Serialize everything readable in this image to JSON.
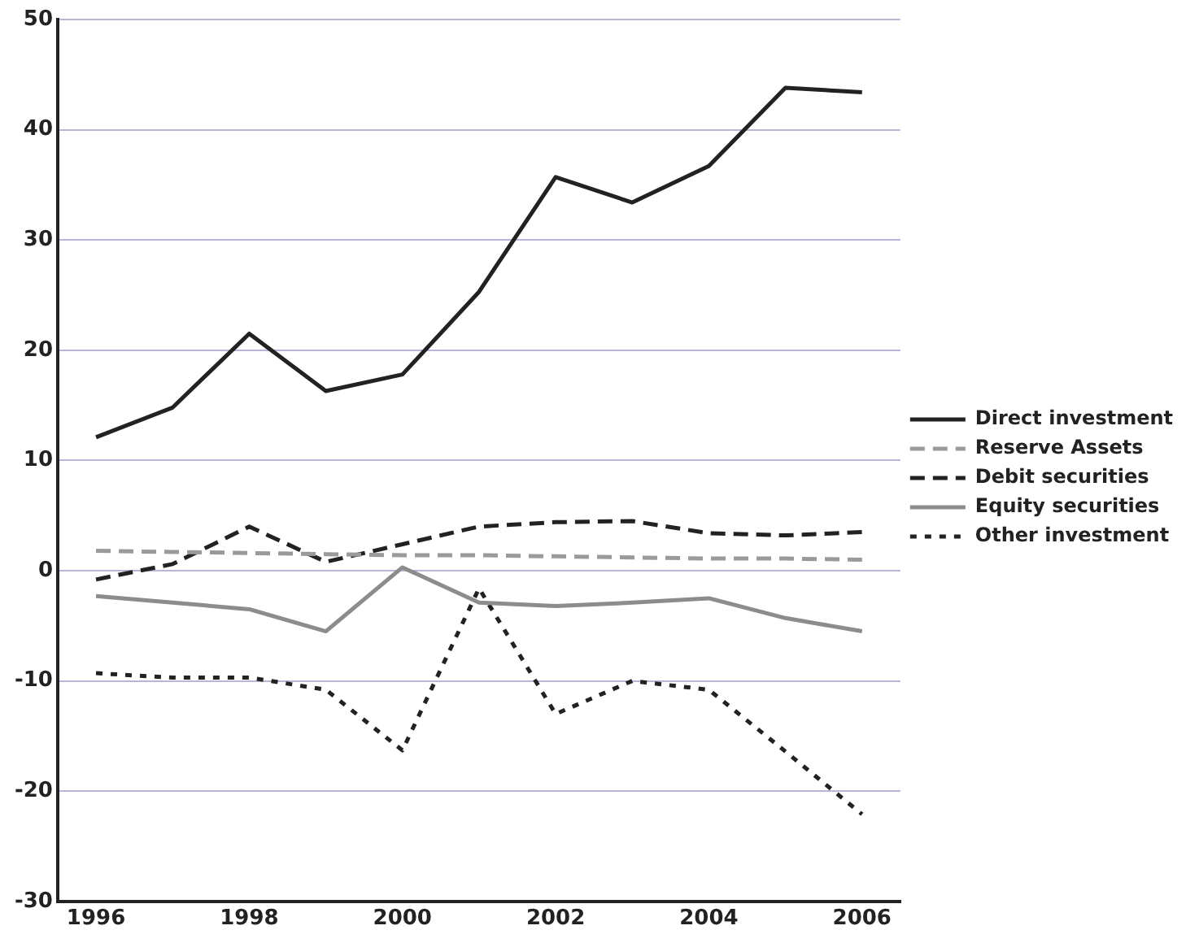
{
  "chart_data": {
    "type": "line",
    "x": [
      1996,
      1997,
      1998,
      1999,
      2000,
      2001,
      2002,
      2003,
      2004,
      2005,
      2006
    ],
    "series": [
      {
        "name": "Direct investment",
        "color": "#222222",
        "line_style": "solid",
        "values": [
          12.1,
          14.8,
          21.5,
          16.3,
          17.8,
          25.3,
          35.7,
          33.4,
          36.7,
          43.8,
          43.4
        ]
      },
      {
        "name": "Reserve Assets",
        "color": "#9a9a9a",
        "line_style": "dashed",
        "values": [
          1.8,
          1.7,
          1.6,
          1.5,
          1.4,
          1.4,
          1.3,
          1.2,
          1.1,
          1.1,
          1.0
        ]
      },
      {
        "name": "Debit securities",
        "color": "#222222",
        "line_style": "dashed",
        "values": [
          -0.8,
          0.6,
          4.0,
          0.8,
          2.4,
          4.0,
          4.4,
          4.5,
          3.4,
          3.2,
          3.5
        ]
      },
      {
        "name": "Equity securities",
        "color": "#8c8c8c",
        "line_style": "solid",
        "values": [
          -2.3,
          -2.9,
          -3.5,
          -5.5,
          0.3,
          -2.9,
          -3.2,
          -2.9,
          -2.5,
          -4.3,
          -5.5
        ]
      },
      {
        "name": "Other investment",
        "color": "#222222",
        "line_style": "dotted",
        "values": [
          -9.3,
          -9.7,
          -9.7,
          -10.8,
          -16.3,
          -1.6,
          -13.0,
          -10.0,
          -10.8,
          -16.4,
          -22.1
        ]
      }
    ],
    "xlim": [
      1995.5,
      2006.5
    ],
    "xticks": [
      1996,
      1998,
      2000,
      2002,
      2004,
      2006
    ],
    "ylim": [
      -30,
      50
    ],
    "yticks": [
      -30,
      -20,
      -10,
      0,
      10,
      20,
      30,
      40,
      50
    ],
    "grid": "y",
    "legend": "right",
    "marker": "none"
  }
}
